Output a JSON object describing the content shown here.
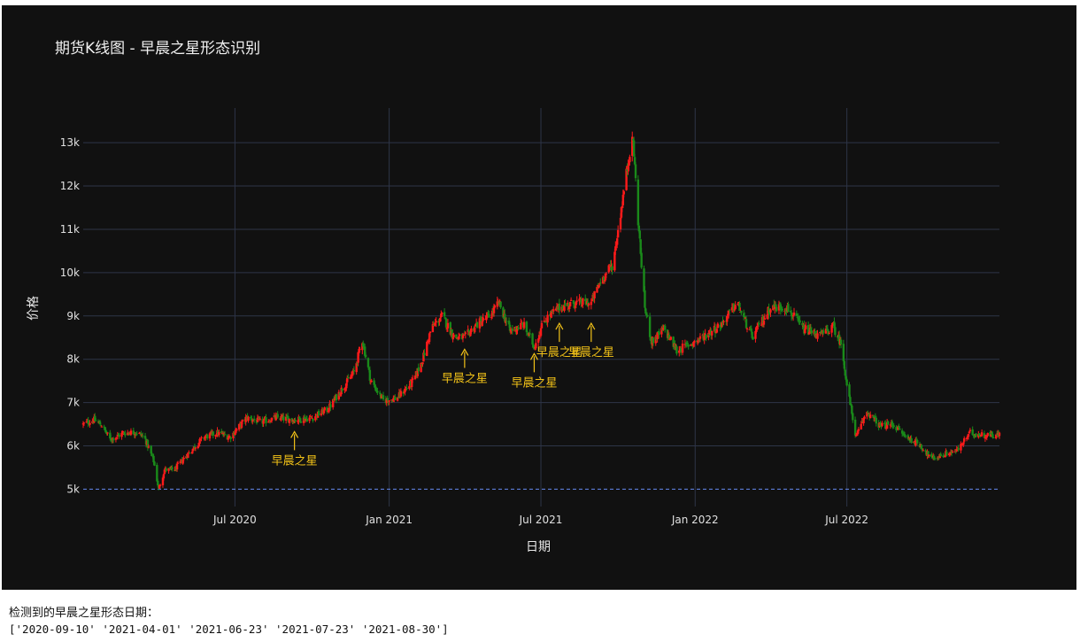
{
  "chart_data": {
    "type": "candlestick",
    "title": "期货K线图 - 早晨之星形态识别",
    "xlabel": "日期",
    "ylabel": "价格",
    "x_range": [
      "2020-01-02",
      "2022-12-30"
    ],
    "ylim": [
      4600,
      13800
    ],
    "x_ticks": [
      {
        "date": "2020-07-01",
        "label": "Jul 2020"
      },
      {
        "date": "2021-01-01",
        "label": "Jan 2021"
      },
      {
        "date": "2021-07-01",
        "label": "Jul 2021"
      },
      {
        "date": "2022-01-01",
        "label": "Jan 2022"
      },
      {
        "date": "2022-07-01",
        "label": "Jul 2022"
      }
    ],
    "y_ticks": [
      {
        "value": 5000,
        "label": "5k"
      },
      {
        "value": 6000,
        "label": "6k"
      },
      {
        "value": 7000,
        "label": "7k"
      },
      {
        "value": 8000,
        "label": "8k"
      },
      {
        "value": 9000,
        "label": "9k"
      },
      {
        "value": 10000,
        "label": "10k"
      },
      {
        "value": 11000,
        "label": "11k"
      },
      {
        "value": 12000,
        "label": "12k"
      },
      {
        "value": 13000,
        "label": "13k"
      }
    ],
    "reference_line": {
      "y": 5000,
      "style": "dashed",
      "color": "#5b7bd5"
    },
    "colors": {
      "up": "#ff1a1a",
      "down": "#1a8a1a",
      "annotation": "#f2c218",
      "grid": "#2e3548",
      "background": "#111111"
    },
    "price_path": [
      [
        "2020-01-02",
        6500
      ],
      [
        "2020-01-15",
        6600
      ],
      [
        "2020-01-24",
        6480
      ],
      [
        "2020-02-03",
        6150
      ],
      [
        "2020-02-20",
        6300
      ],
      [
        "2020-03-05",
        6320
      ],
      [
        "2020-03-15",
        6200
      ],
      [
        "2020-03-26",
        5650
      ],
      [
        "2020-04-01",
        5000
      ],
      [
        "2020-04-08",
        5450
      ],
      [
        "2020-04-20",
        5450
      ],
      [
        "2020-05-05",
        5800
      ],
      [
        "2020-05-25",
        6200
      ],
      [
        "2020-06-10",
        6300
      ],
      [
        "2020-06-25",
        6200
      ],
      [
        "2020-07-15",
        6650
      ],
      [
        "2020-08-01",
        6550
      ],
      [
        "2020-08-20",
        6650
      ],
      [
        "2020-09-10",
        6600
      ],
      [
        "2020-10-01",
        6650
      ],
      [
        "2020-10-20",
        6850
      ],
      [
        "2020-11-05",
        7300
      ],
      [
        "2020-11-20",
        7700
      ],
      [
        "2020-11-30",
        8450
      ],
      [
        "2020-12-10",
        7500
      ],
      [
        "2020-12-25",
        7050
      ],
      [
        "2021-01-10",
        7100
      ],
      [
        "2021-01-30",
        7500
      ],
      [
        "2021-02-10",
        8000
      ],
      [
        "2021-02-20",
        8700
      ],
      [
        "2021-03-05",
        9000
      ],
      [
        "2021-03-20",
        8500
      ],
      [
        "2021-04-01",
        8500
      ],
      [
        "2021-04-15",
        8800
      ],
      [
        "2021-05-01",
        9000
      ],
      [
        "2021-05-12",
        9300
      ],
      [
        "2021-05-25",
        8650
      ],
      [
        "2021-06-10",
        8800
      ],
      [
        "2021-06-23",
        8300
      ],
      [
        "2021-07-05",
        8900
      ],
      [
        "2021-07-23",
        9200
      ],
      [
        "2021-08-10",
        9300
      ],
      [
        "2021-08-30",
        9300
      ],
      [
        "2021-09-10",
        9800
      ],
      [
        "2021-09-25",
        10200
      ],
      [
        "2021-10-05",
        11500
      ],
      [
        "2021-10-15",
        12800
      ],
      [
        "2021-10-19",
        13050
      ],
      [
        "2021-10-25",
        11200
      ],
      [
        "2021-11-02",
        9200
      ],
      [
        "2021-11-10",
        8400
      ],
      [
        "2021-11-25",
        8700
      ],
      [
        "2021-12-10",
        8200
      ],
      [
        "2022-01-05",
        8450
      ],
      [
        "2022-02-01",
        8800
      ],
      [
        "2022-02-20",
        9300
      ],
      [
        "2022-03-10",
        8500
      ],
      [
        "2022-04-01",
        9200
      ],
      [
        "2022-04-20",
        9200
      ],
      [
        "2022-05-10",
        8700
      ],
      [
        "2022-05-30",
        8550
      ],
      [
        "2022-06-15",
        8750
      ],
      [
        "2022-06-25",
        8300
      ],
      [
        "2022-07-01",
        7400
      ],
      [
        "2022-07-12",
        6200
      ],
      [
        "2022-07-25",
        6800
      ],
      [
        "2022-08-10",
        6450
      ],
      [
        "2022-08-25",
        6500
      ],
      [
        "2022-09-10",
        6200
      ],
      [
        "2022-09-25",
        6050
      ],
      [
        "2022-10-10",
        5700
      ],
      [
        "2022-10-25",
        5800
      ],
      [
        "2022-11-10",
        5900
      ],
      [
        "2022-11-25",
        6300
      ],
      [
        "2022-12-10",
        6250
      ],
      [
        "2022-12-30",
        6250
      ]
    ],
    "annotations": [
      {
        "date": "2020-09-10",
        "price": 6350,
        "text": "早晨之星",
        "label_dy": 28
      },
      {
        "date": "2021-04-01",
        "price": 8250,
        "text": "早晨之星",
        "label_dy": 28
      },
      {
        "date": "2021-06-23",
        "price": 8150,
        "text": "早晨之星",
        "label_dy": 28
      },
      {
        "date": "2021-07-23",
        "price": 8850,
        "text": "早晨之星",
        "label_dy": 28
      },
      {
        "date": "2021-08-30",
        "price": 8850,
        "text": "早晨之星",
        "label_dy": 28
      }
    ]
  },
  "output": {
    "heading": "检测到的早晨之星形态日期：",
    "dates": "['2020-09-10' '2021-04-01' '2021-06-23' '2021-07-23' '2021-08-30']"
  }
}
